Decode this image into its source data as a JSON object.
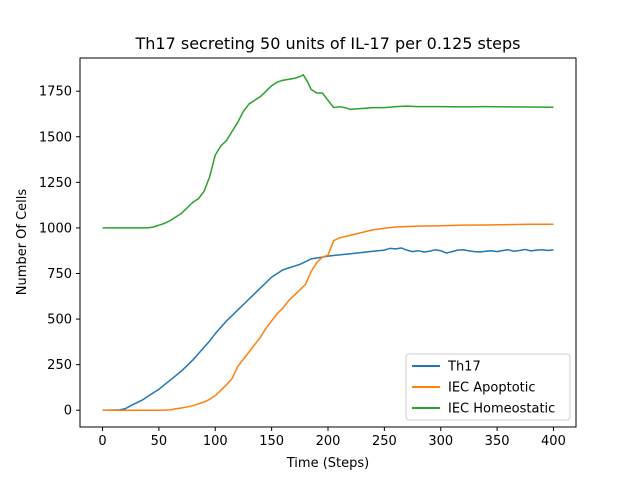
{
  "chart_data": {
    "type": "line",
    "title": "Th17 secreting 50 units of IL-17 per 0.125 steps",
    "xlabel": "Time (Steps)",
    "ylabel": "Number Of Cells",
    "xlim": [
      -20,
      420
    ],
    "ylim": [
      -92,
      1932
    ],
    "x_ticks": [
      0,
      50,
      100,
      150,
      200,
      250,
      300,
      350,
      400
    ],
    "y_ticks": [
      0,
      250,
      500,
      750,
      1000,
      1250,
      1500,
      1750
    ],
    "grid": false,
    "legend_position": "lower-right",
    "series": [
      {
        "name": "Th17",
        "color": "#1f77b4",
        "x": [
          0,
          15,
          20,
          25,
          30,
          35,
          40,
          45,
          50,
          55,
          60,
          65,
          70,
          75,
          80,
          85,
          90,
          95,
          100,
          105,
          110,
          115,
          120,
          125,
          130,
          135,
          140,
          145,
          150,
          155,
          160,
          165,
          170,
          175,
          180,
          185,
          190,
          195,
          200,
          210,
          220,
          230,
          240,
          250,
          255,
          260,
          265,
          270,
          275,
          280,
          285,
          290,
          295,
          300,
          305,
          310,
          315,
          320,
          325,
          330,
          335,
          340,
          345,
          350,
          355,
          360,
          365,
          370,
          375,
          380,
          385,
          390,
          395,
          400
        ],
        "values": [
          0,
          2,
          8,
          25,
          40,
          55,
          75,
          95,
          115,
          140,
          165,
          190,
          215,
          245,
          275,
          310,
          345,
          380,
          420,
          455,
          490,
          520,
          550,
          580,
          610,
          640,
          670,
          700,
          730,
          750,
          770,
          780,
          790,
          800,
          815,
          830,
          835,
          840,
          845,
          852,
          858,
          865,
          872,
          878,
          888,
          885,
          890,
          878,
          870,
          875,
          868,
          872,
          880,
          875,
          862,
          870,
          878,
          880,
          874,
          870,
          868,
          872,
          875,
          870,
          876,
          880,
          872,
          876,
          882,
          874,
          878,
          880,
          876,
          880
        ]
      },
      {
        "name": "IEC Apoptotic",
        "color": "#ff7f0e",
        "x": [
          0,
          50,
          60,
          65,
          70,
          75,
          80,
          85,
          90,
          95,
          100,
          105,
          110,
          115,
          120,
          125,
          130,
          135,
          140,
          145,
          150,
          155,
          160,
          165,
          170,
          175,
          180,
          185,
          190,
          195,
          200,
          205,
          210,
          220,
          230,
          240,
          250,
          260,
          270,
          280,
          300,
          320,
          340,
          360,
          380,
          400
        ],
        "values": [
          0,
          0,
          2,
          8,
          12,
          18,
          25,
          35,
          45,
          60,
          80,
          110,
          140,
          175,
          240,
          280,
          320,
          360,
          400,
          450,
          490,
          530,
          560,
          600,
          630,
          660,
          690,
          760,
          810,
          840,
          850,
          930,
          945,
          960,
          975,
          990,
          998,
          1005,
          1008,
          1010,
          1012,
          1015,
          1016,
          1018,
          1020,
          1020
        ]
      },
      {
        "name": "IEC Homeostatic",
        "color": "#2ca02c",
        "x": [
          0,
          40,
          45,
          50,
          55,
          60,
          65,
          70,
          75,
          80,
          85,
          90,
          95,
          100,
          105,
          110,
          115,
          120,
          125,
          130,
          135,
          140,
          145,
          150,
          155,
          160,
          165,
          170,
          175,
          178,
          182,
          185,
          190,
          195,
          200,
          205,
          210,
          215,
          220,
          230,
          240,
          250,
          260,
          270,
          280,
          300,
          320,
          340,
          360,
          380,
          400
        ],
        "values": [
          1000,
          1000,
          1005,
          1015,
          1025,
          1040,
          1060,
          1080,
          1110,
          1140,
          1160,
          1200,
          1280,
          1400,
          1450,
          1480,
          1530,
          1580,
          1640,
          1680,
          1700,
          1720,
          1750,
          1780,
          1800,
          1810,
          1815,
          1820,
          1830,
          1840,
          1800,
          1760,
          1740,
          1740,
          1700,
          1660,
          1665,
          1660,
          1650,
          1655,
          1660,
          1660,
          1665,
          1668,
          1665,
          1665,
          1664,
          1665,
          1664,
          1663,
          1662
        ]
      }
    ]
  }
}
